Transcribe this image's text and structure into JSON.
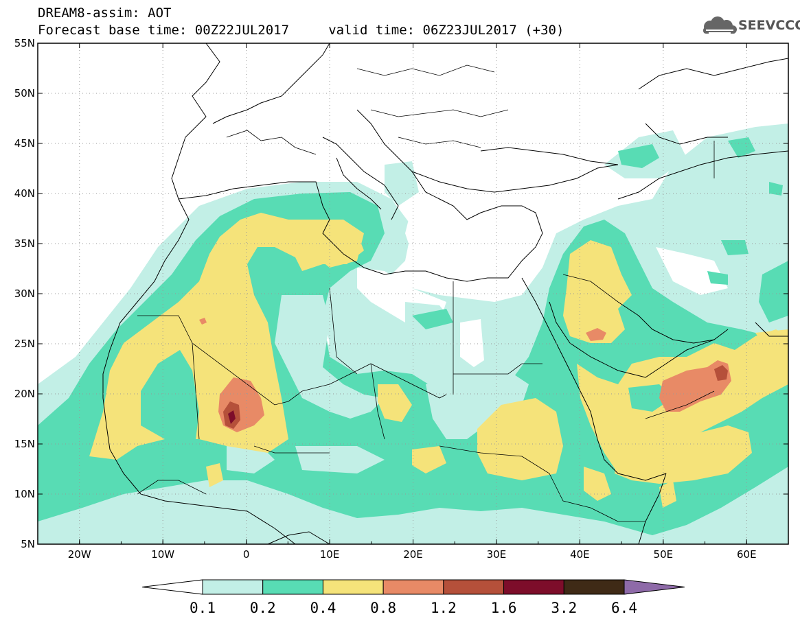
{
  "header": {
    "line1": "DREAM8-assim: AOT",
    "line2": "Forecast base time: 00Z22JUL2017     valid time: 06Z23JUL2017 (+30)",
    "logo_text": "SEEVCCC",
    "logo_icon": "cloud-logo-icon"
  },
  "map": {
    "extent": {
      "lon_min": -25,
      "lon_max": 65,
      "lat_min": 5,
      "lat_max": 55
    },
    "lat_labels": [
      "55N",
      "50N",
      "45N",
      "40N",
      "35N",
      "30N",
      "25N",
      "20N",
      "15N",
      "10N",
      "5N"
    ],
    "lat_values": [
      55,
      50,
      45,
      40,
      35,
      30,
      25,
      20,
      15,
      10,
      5
    ],
    "lon_labels": [
      "20W",
      "10W",
      "0",
      "10E",
      "20E",
      "30E",
      "40E",
      "50E",
      "60E"
    ],
    "lon_values": [
      -20,
      -10,
      0,
      10,
      20,
      30,
      40,
      50,
      60
    ],
    "grid": "dotted",
    "variable": "Aerosol optical thickness"
  },
  "colorbar": {
    "levels": [
      "0.1",
      "0.2",
      "0.4",
      "0.8",
      "1.2",
      "1.6",
      "3.2",
      "6.4"
    ],
    "colors": [
      "#ffffff",
      "#c2efe6",
      "#58dcb4",
      "#f5e37a",
      "#e88a66",
      "#b5503a",
      "#7d0d2a",
      "#3f2a16",
      "#8e6aa8"
    ]
  }
}
